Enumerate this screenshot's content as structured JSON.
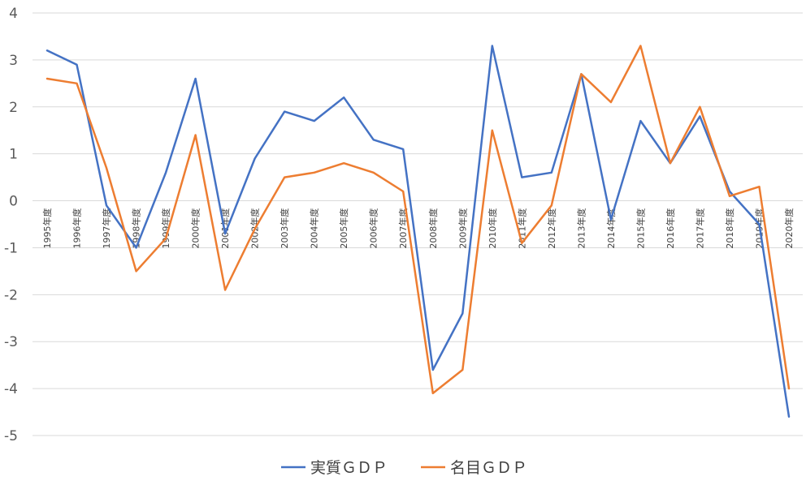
{
  "chart_data": {
    "type": "line",
    "title": "",
    "xlabel": "",
    "ylabel": "",
    "ylim": [
      -5,
      4
    ],
    "yticks": [
      4,
      3,
      2,
      1,
      0,
      -1,
      -2,
      -3,
      -4,
      -5
    ],
    "grid": true,
    "legend_position": "bottom",
    "categories": [
      "1995年度",
      "1996年度",
      "1997年度",
      "1998年度",
      "1999年度",
      "2000年度",
      "2001年度",
      "2002年度",
      "2003年度",
      "2004年度",
      "2005年度",
      "2006年度",
      "2007年度",
      "2008年度",
      "2009年度",
      "2010年度",
      "2011年度",
      "2012年度",
      "2013年度",
      "2014年度",
      "2015年度",
      "2016年度",
      "2017年度",
      "2018年度",
      "2019年度",
      "2020年度"
    ],
    "series": [
      {
        "name": "実質ＧＤＰ",
        "color": "#4472c4",
        "values": [
          3.2,
          2.9,
          -0.1,
          -1.0,
          0.6,
          2.6,
          -0.7,
          0.9,
          1.9,
          1.7,
          2.2,
          1.3,
          1.1,
          -3.6,
          -2.4,
          3.3,
          0.5,
          0.6,
          2.7,
          -0.4,
          1.7,
          0.8,
          1.8,
          0.2,
          -0.5,
          -4.6
        ]
      },
      {
        "name": "名目ＧＤＰ",
        "color": "#ed7d31",
        "values": [
          2.6,
          2.5,
          0.7,
          -1.5,
          -0.8,
          1.4,
          -1.9,
          -0.6,
          0.5,
          0.6,
          0.8,
          0.6,
          0.2,
          -4.1,
          -3.6,
          1.5,
          -0.9,
          -0.1,
          2.7,
          2.1,
          3.3,
          0.8,
          2.0,
          0.1,
          0.3,
          -4.0
        ]
      }
    ]
  }
}
